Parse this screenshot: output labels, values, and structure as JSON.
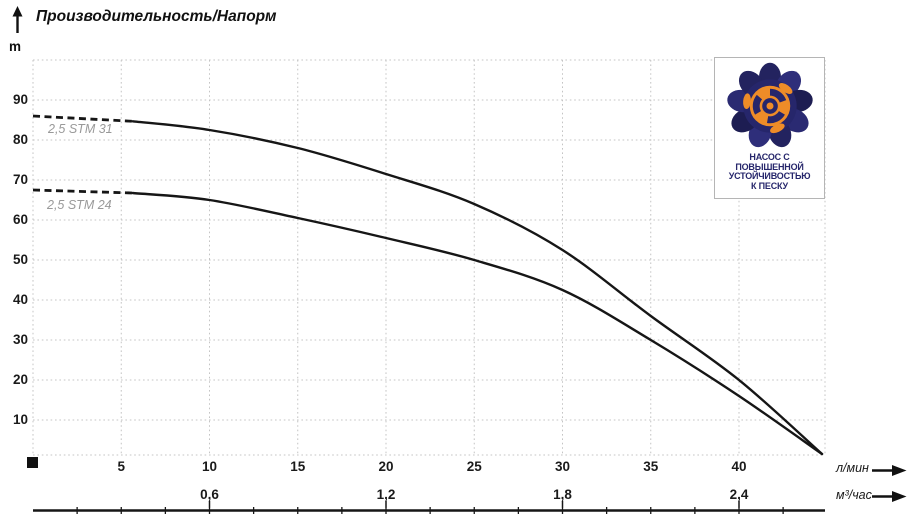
{
  "header": {
    "title": "Производительность/Напорм",
    "y_unit": "m"
  },
  "logo": {
    "lines": [
      "НАСОС С ПОВЫШЕННОЙ",
      "УСТОЙЧИВОСТЬЮ",
      "К ПЕСКУ"
    ]
  },
  "colors": {
    "curve": "#161616",
    "grid": "#c4c4c4",
    "series_label": "#999999",
    "logo_navy": "#26266b",
    "logo_orange": "#ee8c28"
  },
  "chart_data": {
    "type": "line",
    "title": "Производительность/Напорм",
    "ylabel": "m",
    "grid": "dotted",
    "legend_position": "on-curve-left",
    "y_axis": {
      "ticks": [
        10,
        20,
        30,
        40,
        50,
        60,
        70,
        80,
        90
      ],
      "range": [
        0,
        98.75
      ]
    },
    "x_axis_primary": {
      "label": "л/мин",
      "ticks": [
        5,
        10,
        15,
        20,
        25,
        30,
        35,
        40
      ],
      "range": [
        0,
        44.9
      ],
      "minor_tick_step": 2.5
    },
    "x_axis_secondary": {
      "label": "м³/час",
      "ticks": [
        0.6,
        1.2,
        1.8,
        2.4
      ],
      "tick_labels": [
        "0,6",
        "1,2",
        "1,8",
        "2,4"
      ]
    },
    "series": [
      {
        "name": "2,5 STM 31",
        "style": "dashed-head-then-solid",
        "x": [
          0,
          5,
          10,
          15,
          20,
          25,
          30,
          35,
          40,
          44.7
        ],
        "y": [
          86,
          85,
          82.5,
          78,
          71.5,
          64,
          52.5,
          36,
          20,
          1.5
        ]
      },
      {
        "name": "2,5 STM 24",
        "style": "dashed-head-then-solid",
        "x": [
          0,
          5,
          10,
          15,
          20,
          25,
          30,
          35,
          40,
          44.7
        ],
        "y": [
          67.5,
          67,
          65,
          60.5,
          55.5,
          50,
          42.5,
          30,
          16,
          1.5
        ]
      }
    ]
  }
}
